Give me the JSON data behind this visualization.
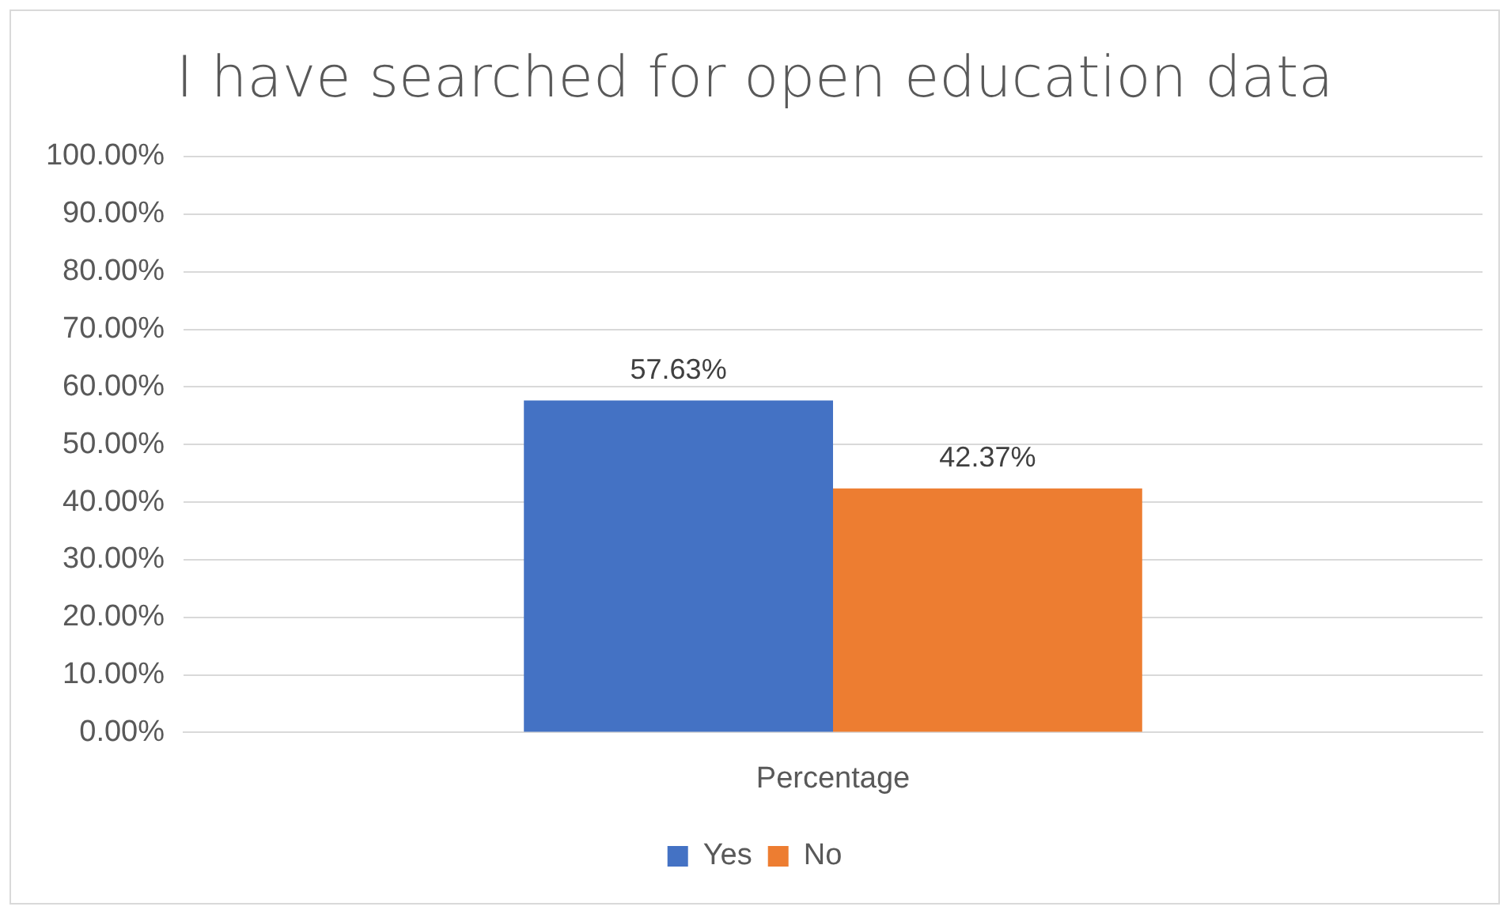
{
  "chart_data": {
    "type": "bar",
    "title": "I have searched for open education data",
    "categories": [
      "Percentage"
    ],
    "series": [
      {
        "name": "Yes",
        "color": "#4472c4",
        "values": [
          57.63
        ],
        "value_labels": [
          "57.63%"
        ]
      },
      {
        "name": "No",
        "color": "#ed7d31",
        "values": [
          42.37
        ],
        "value_labels": [
          "42.37%"
        ]
      }
    ],
    "ylim": [
      0,
      100
    ],
    "yticks": [
      {
        "value": 0,
        "label": "0.00%"
      },
      {
        "value": 10,
        "label": "10.00%"
      },
      {
        "value": 20,
        "label": "20.00%"
      },
      {
        "value": 30,
        "label": "30.00%"
      },
      {
        "value": 40,
        "label": "40.00%"
      },
      {
        "value": 50,
        "label": "50.00%"
      },
      {
        "value": 60,
        "label": "60.00%"
      },
      {
        "value": 70,
        "label": "70.00%"
      },
      {
        "value": 80,
        "label": "80.00%"
      },
      {
        "value": 90,
        "label": "90.00%"
      },
      {
        "value": 100,
        "label": "100.00%"
      }
    ],
    "grid": "y",
    "legend": "bottom"
  }
}
